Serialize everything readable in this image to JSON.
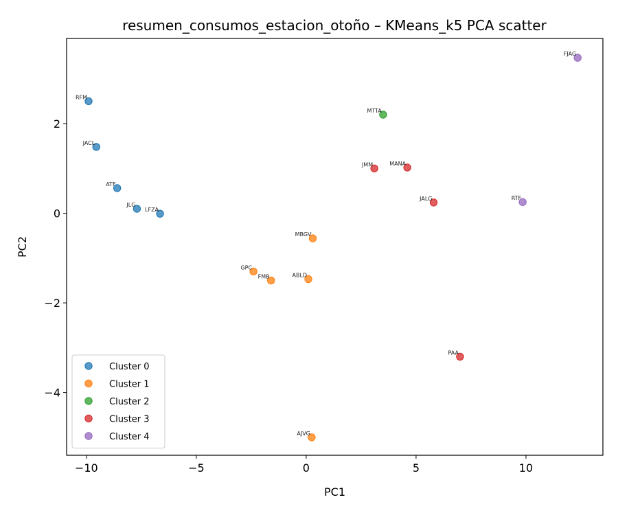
{
  "chart_data": {
    "type": "scatter",
    "title": "resumen_consumos_estacion_otoño – KMeans_k5 PCA scatter",
    "xlabel": "PC1",
    "ylabel": "PC2",
    "xlim": [
      -10.9,
      13.5
    ],
    "ylim": [
      -5.4,
      3.9
    ],
    "xticks": [
      -10,
      -5,
      0,
      5,
      10
    ],
    "xtick_labels": [
      "−10",
      "−5",
      "0",
      "5",
      "10"
    ],
    "yticks": [
      -4,
      -2,
      0,
      2
    ],
    "ytick_labels": [
      "−4",
      "−2",
      "0",
      "2"
    ],
    "grid": false,
    "legend_position": "lower-left",
    "series": [
      {
        "name": "Cluster 0",
        "color": "#1f77b4",
        "points": [
          {
            "label": "RFM",
            "x": -9.9,
            "y": 2.5
          },
          {
            "label": "JACL",
            "x": -9.55,
            "y": 1.48
          },
          {
            "label": "ATF",
            "x": -8.6,
            "y": 0.56
          },
          {
            "label": "JLG",
            "x": -7.7,
            "y": 0.1
          },
          {
            "label": "LFZA",
            "x": -6.65,
            "y": -0.01
          }
        ]
      },
      {
        "name": "Cluster 1",
        "color": "#ff7f0e",
        "points": [
          {
            "label": "MBGV",
            "x": 0.3,
            "y": -0.56
          },
          {
            "label": "GPC",
            "x": -2.4,
            "y": -1.3
          },
          {
            "label": "FMB",
            "x": -1.6,
            "y": -1.5
          },
          {
            "label": "ABLD",
            "x": 0.1,
            "y": -1.47
          },
          {
            "label": "AJVG",
            "x": 0.25,
            "y": -5.0
          }
        ]
      },
      {
        "name": "Cluster 2",
        "color": "#2ca02c",
        "points": [
          {
            "label": "MTTA",
            "x": 3.5,
            "y": 2.2
          }
        ]
      },
      {
        "name": "Cluster 3",
        "color": "#d62728",
        "points": [
          {
            "label": "JMM",
            "x": 3.1,
            "y": 1.0
          },
          {
            "label": "MANA",
            "x": 4.6,
            "y": 1.02
          },
          {
            "label": "JALG",
            "x": 5.8,
            "y": 0.24
          },
          {
            "label": "PAA",
            "x": 7.0,
            "y": -3.2
          }
        ]
      },
      {
        "name": "Cluster 4",
        "color": "#9467bd",
        "points": [
          {
            "label": "FJAG",
            "x": 12.35,
            "y": 3.47
          },
          {
            "label": "RTF",
            "x": 9.85,
            "y": 0.25
          }
        ]
      }
    ]
  }
}
